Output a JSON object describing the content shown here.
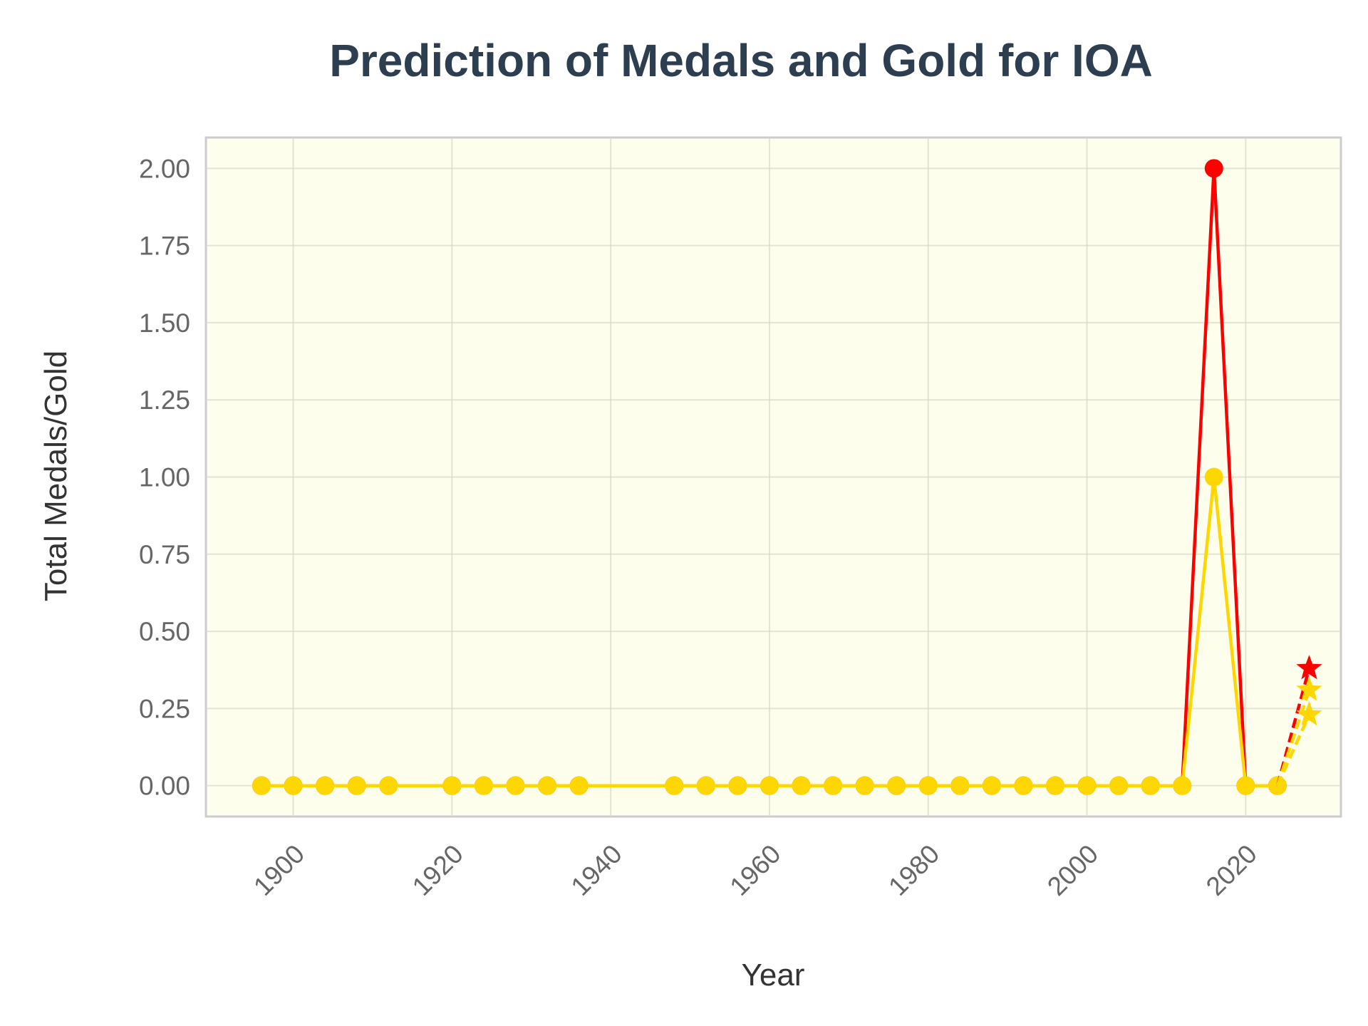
{
  "chart_data": {
    "type": "line",
    "title": "Prediction of Medals and Gold for IOA",
    "xlabel": "Year",
    "ylabel": "Total Medals/Gold",
    "xlim": [
      1889,
      2032
    ],
    "ylim": [
      -0.1,
      2.1
    ],
    "x_ticks": [
      1900,
      1920,
      1940,
      1960,
      1980,
      2000,
      2020
    ],
    "y_ticks": [
      0.0,
      0.25,
      0.5,
      0.75,
      1.0,
      1.25,
      1.5,
      1.75,
      2.0
    ],
    "y_tick_labels": [
      "0.00",
      "0.25",
      "0.50",
      "0.75",
      "1.00",
      "1.25",
      "1.50",
      "1.75",
      "2.00"
    ],
    "grid": true,
    "background": "#fdfeeb",
    "series": [
      {
        "kind": "historical-total",
        "color": "#ff0000",
        "marker": "circle",
        "x": [
          1896,
          1900,
          1904,
          1908,
          1912,
          1920,
          1924,
          1928,
          1932,
          1936,
          1948,
          1952,
          1956,
          1960,
          1964,
          1968,
          1972,
          1976,
          1980,
          1984,
          1988,
          1992,
          1996,
          2000,
          2004,
          2008,
          2012,
          2016,
          2020,
          2024
        ],
        "y": [
          0,
          0,
          0,
          0,
          0,
          0,
          0,
          0,
          0,
          0,
          0,
          0,
          0,
          0,
          0,
          0,
          0,
          0,
          0,
          0,
          0,
          0,
          0,
          0,
          0,
          0,
          0,
          2,
          0,
          0
        ]
      },
      {
        "kind": "historical-gold",
        "color": "#ffd700",
        "marker": "circle",
        "x": [
          1896,
          1900,
          1904,
          1908,
          1912,
          1920,
          1924,
          1928,
          1932,
          1936,
          1948,
          1952,
          1956,
          1960,
          1964,
          1968,
          1972,
          1976,
          1980,
          1984,
          1988,
          1992,
          1996,
          2000,
          2004,
          2008,
          2012,
          2016,
          2020,
          2024
        ],
        "y": [
          0,
          0,
          0,
          0,
          0,
          0,
          0,
          0,
          0,
          0,
          0,
          0,
          0,
          0,
          0,
          0,
          0,
          0,
          0,
          0,
          0,
          0,
          0,
          0,
          0,
          0,
          0,
          1,
          0,
          0
        ]
      },
      {
        "kind": "prediction-total",
        "color": "#ff0000",
        "marker": "star",
        "dashed": true,
        "x": [
          2024,
          2028
        ],
        "y": [
          0,
          0.38
        ]
      },
      {
        "kind": "prediction-gold-upper",
        "color": "#ffd700",
        "marker": "star",
        "dashed": true,
        "x": [
          2024,
          2028
        ],
        "y": [
          0,
          0.31
        ]
      },
      {
        "kind": "prediction-gold",
        "color": "#ffd700",
        "marker": "star",
        "dashed": true,
        "x": [
          2024,
          2028
        ],
        "y": [
          0,
          0.23
        ]
      }
    ]
  }
}
